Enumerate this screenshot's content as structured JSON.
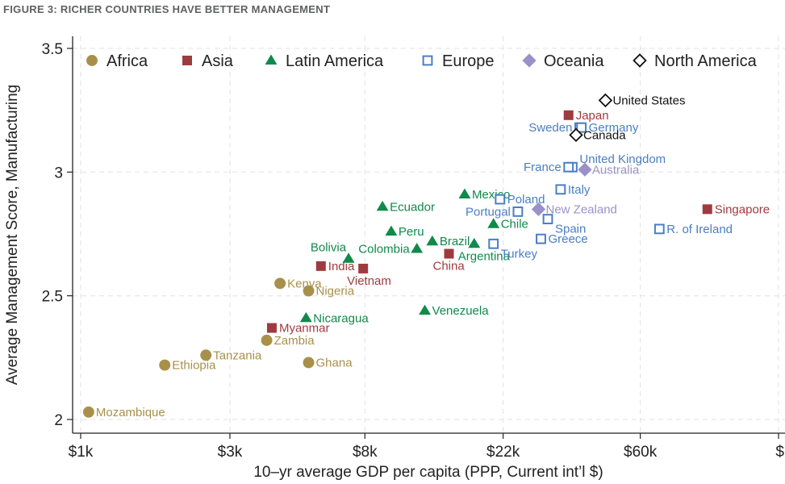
{
  "figure_title": "FIGURE 3: RICHER COUNTRIES HAVE BETTER MANAGEMENT",
  "chart_data": {
    "type": "scatter",
    "title": "FIGURE 3: RICHER COUNTRIES HAVE BETTER MANAGEMENT",
    "xlabel": "10–yr average GDP per capita (PPP, Current int’l $)",
    "ylabel": "Average Management Score, Manufacturing",
    "xscale": "log",
    "xlim": [
      1000,
      170000
    ],
    "ylim": [
      1.96,
      3.56
    ],
    "x_ticks": [
      {
        "value": 1000,
        "label": "$1k"
      },
      {
        "value": 2980,
        "label": "$3k"
      },
      {
        "value": 8000,
        "label": "$8k"
      },
      {
        "value": 22000,
        "label": "$22k"
      },
      {
        "value": 60000,
        "label": "$60k"
      },
      {
        "value": 165000,
        "label": "$"
      }
    ],
    "y_ticks": [
      {
        "value": 2,
        "label": "2"
      },
      {
        "value": 2.5,
        "label": "2.5"
      },
      {
        "value": 3,
        "label": "3"
      },
      {
        "value": 3.5,
        "label": "3.5"
      }
    ],
    "grid": true,
    "legend_position": "top",
    "series": [
      {
        "name": "Africa",
        "marker": "circle",
        "color": "#a8904a",
        "points": [
          {
            "label": "Kenya",
            "x": 4300,
            "y": 2.55,
            "side": "right"
          },
          {
            "label": "Nigeria",
            "x": 5300,
            "y": 2.52,
            "side": "right"
          },
          {
            "label": "Zambia",
            "x": 3900,
            "y": 2.32,
            "side": "right"
          },
          {
            "label": "Tanzania",
            "x": 2500,
            "y": 2.26,
            "side": "right"
          },
          {
            "label": "Ethiopia",
            "x": 1850,
            "y": 2.22,
            "side": "right"
          },
          {
            "label": "Ghana",
            "x": 5300,
            "y": 2.23,
            "side": "right"
          },
          {
            "label": "Mozambique",
            "x": 1060,
            "y": 2.03,
            "side": "right"
          }
        ]
      },
      {
        "name": "Asia",
        "marker": "square",
        "color": "#9e3b3f",
        "points": [
          {
            "label": "Japan",
            "x": 35500,
            "y": 3.23,
            "side": "right"
          },
          {
            "label": "Singapore",
            "x": 98000,
            "y": 2.85,
            "side": "right"
          },
          {
            "label": "India",
            "x": 5800,
            "y": 2.62,
            "side": "right"
          },
          {
            "label": "Vietnam",
            "x": 7900,
            "y": 2.61,
            "side": "below"
          },
          {
            "label": "China",
            "x": 14800,
            "y": 2.67,
            "side": "below"
          },
          {
            "label": "Myanmar",
            "x": 4050,
            "y": 2.37,
            "side": "right"
          }
        ]
      },
      {
        "name": "Latin America",
        "marker": "triangle",
        "color": "#0f8a4b",
        "points": [
          {
            "label": "Mexico",
            "x": 16600,
            "y": 2.91,
            "side": "right"
          },
          {
            "label": "Ecuador",
            "x": 9100,
            "y": 2.86,
            "side": "right"
          },
          {
            "label": "Chile",
            "x": 20500,
            "y": 2.79,
            "side": "right"
          },
          {
            "label": "Peru",
            "x": 9700,
            "y": 2.76,
            "side": "right"
          },
          {
            "label": "Brazil",
            "x": 13100,
            "y": 2.72,
            "side": "right"
          },
          {
            "label": "Colombia",
            "x": 11700,
            "y": 2.69,
            "side": "left"
          },
          {
            "label": "Argentina",
            "x": 17800,
            "y": 2.71,
            "side": "below"
          },
          {
            "label": "Bolivia",
            "x": 7100,
            "y": 2.65,
            "side": "above"
          },
          {
            "label": "Venezuela",
            "x": 12400,
            "y": 2.44,
            "side": "right"
          },
          {
            "label": "Nicaragua",
            "x": 5200,
            "y": 2.41,
            "side": "right"
          }
        ]
      },
      {
        "name": "Europe",
        "marker": "hollow-square",
        "color": "#4a7ec4",
        "points": [
          {
            "label": "Sweden",
            "x": 38500,
            "y": 3.18,
            "side": "left"
          },
          {
            "label": "Germany",
            "x": 39000,
            "y": 3.18,
            "side": "right"
          },
          {
            "label": "United Kingdom",
            "x": 36500,
            "y": 3.02,
            "side": "above-right"
          },
          {
            "label": "France",
            "x": 35500,
            "y": 3.02,
            "side": "left"
          },
          {
            "label": "Italy",
            "x": 33500,
            "y": 2.93,
            "side": "right"
          },
          {
            "label": "Poland",
            "x": 21500,
            "y": 2.89,
            "side": "right"
          },
          {
            "label": "Portugal",
            "x": 24500,
            "y": 2.84,
            "side": "left"
          },
          {
            "label": "Spain",
            "x": 30500,
            "y": 2.81,
            "side": "below-right"
          },
          {
            "label": "Greece",
            "x": 29000,
            "y": 2.73,
            "side": "right"
          },
          {
            "label": "Turkey",
            "x": 20500,
            "y": 2.71,
            "side": "below-right"
          },
          {
            "label": "R. of Ireland",
            "x": 69000,
            "y": 2.77,
            "side": "right"
          }
        ]
      },
      {
        "name": "Oceania",
        "marker": "diamond",
        "color": "#9b91c9",
        "points": [
          {
            "label": "Australia",
            "x": 40000,
            "y": 3.01,
            "side": "right"
          },
          {
            "label": "New Zealand",
            "x": 28500,
            "y": 2.85,
            "side": "right"
          }
        ]
      },
      {
        "name": "North America",
        "marker": "hollow-diamond",
        "color": "#111111",
        "points": [
          {
            "label": "United States",
            "x": 46500,
            "y": 3.29,
            "side": "right"
          },
          {
            "label": "Canada",
            "x": 37500,
            "y": 3.15,
            "side": "right"
          }
        ]
      }
    ]
  }
}
